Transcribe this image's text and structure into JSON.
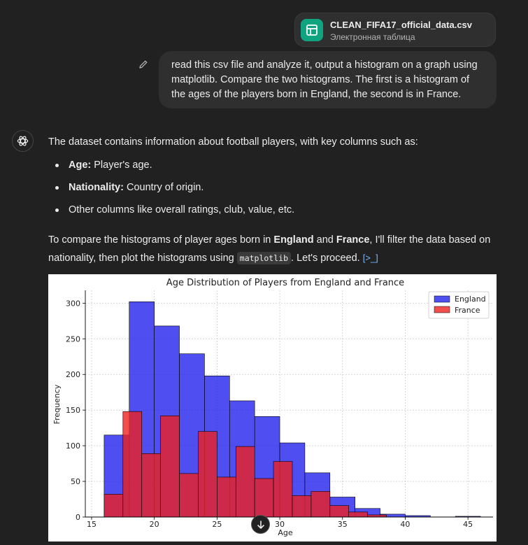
{
  "attachment": {
    "filename": "CLEAN_FIFA17_official_data.csv",
    "type_label": "Электронная таблица"
  },
  "user_message": {
    "lines": [
      "read this csv file and analyze it, output a histogram on a graph using",
      "matplotlib. Compare the two histograms. The first is a histogram of",
      "the ages of the players born in England, the second is in France."
    ]
  },
  "assistant": {
    "intro": "The dataset contains information about football players, with key columns such as:",
    "bullets": [
      {
        "bold": "Age:",
        "text": " Player's age."
      },
      {
        "bold": "Nationality:",
        "text": " Country of origin."
      },
      {
        "bold": "",
        "text": "Other columns like overall ratings, club, value, etc."
      }
    ],
    "para_1": "To compare the histograms of player ages born in ",
    "para_england": "England",
    "para_2": " and ",
    "para_france": "France",
    "para_3": ", I'll filter the data based on",
    "para_4": "nationality, then plot the histograms using ",
    "para_code": "matplotlib",
    "para_5": ". Let's proceed. ",
    "code_link": "[>_]"
  },
  "chart_data": {
    "type": "bar",
    "title": "Age Distribution of Players from England and France",
    "xlabel": "Age",
    "ylabel": "Frequency",
    "xlim": [
      14.5,
      47.0
    ],
    "ylim": [
      0,
      318
    ],
    "xticks": [
      15,
      20,
      25,
      30,
      35,
      40,
      45
    ],
    "yticks": [
      0,
      50,
      100,
      150,
      200,
      250,
      300
    ],
    "grid": true,
    "legend_position": "top-right",
    "series": [
      {
        "name": "England",
        "color": "#2222ee",
        "bins": [
          {
            "x0": 16.0,
            "x1": 18.0,
            "count": 115
          },
          {
            "x0": 18.0,
            "x1": 20.0,
            "count": 302
          },
          {
            "x0": 20.0,
            "x1": 22.0,
            "count": 268
          },
          {
            "x0": 22.0,
            "x1": 24.0,
            "count": 229
          },
          {
            "x0": 24.0,
            "x1": 26.0,
            "count": 198
          },
          {
            "x0": 26.0,
            "x1": 28.0,
            "count": 163
          },
          {
            "x0": 28.0,
            "x1": 30.0,
            "count": 141
          },
          {
            "x0": 30.0,
            "x1": 32.0,
            "count": 104
          },
          {
            "x0": 32.0,
            "x1": 34.0,
            "count": 62
          },
          {
            "x0": 34.0,
            "x1": 36.0,
            "count": 28
          },
          {
            "x0": 36.0,
            "x1": 38.0,
            "count": 12
          },
          {
            "x0": 38.0,
            "x1": 40.0,
            "count": 4
          },
          {
            "x0": 40.0,
            "x1": 42.0,
            "count": 2
          },
          {
            "x0": 44.0,
            "x1": 46.0,
            "count": 1
          }
        ]
      },
      {
        "name": "France",
        "color": "#ee2222",
        "bins": [
          {
            "x0": 16.0,
            "x1": 17.5,
            "count": 32
          },
          {
            "x0": 17.5,
            "x1": 19.0,
            "count": 148
          },
          {
            "x0": 19.0,
            "x1": 20.5,
            "count": 89
          },
          {
            "x0": 20.5,
            "x1": 22.0,
            "count": 142
          },
          {
            "x0": 22.0,
            "x1": 23.5,
            "count": 61
          },
          {
            "x0": 23.5,
            "x1": 25.0,
            "count": 120
          },
          {
            "x0": 25.0,
            "x1": 26.5,
            "count": 56
          },
          {
            "x0": 26.5,
            "x1": 28.0,
            "count": 99
          },
          {
            "x0": 28.0,
            "x1": 29.5,
            "count": 54
          },
          {
            "x0": 29.5,
            "x1": 31.0,
            "count": 78
          },
          {
            "x0": 31.0,
            "x1": 32.5,
            "count": 30
          },
          {
            "x0": 32.5,
            "x1": 34.0,
            "count": 36
          },
          {
            "x0": 34.0,
            "x1": 35.5,
            "count": 16
          },
          {
            "x0": 35.5,
            "x1": 37.0,
            "count": 7
          },
          {
            "x0": 37.0,
            "x1": 38.5,
            "count": 3
          }
        ]
      }
    ]
  }
}
